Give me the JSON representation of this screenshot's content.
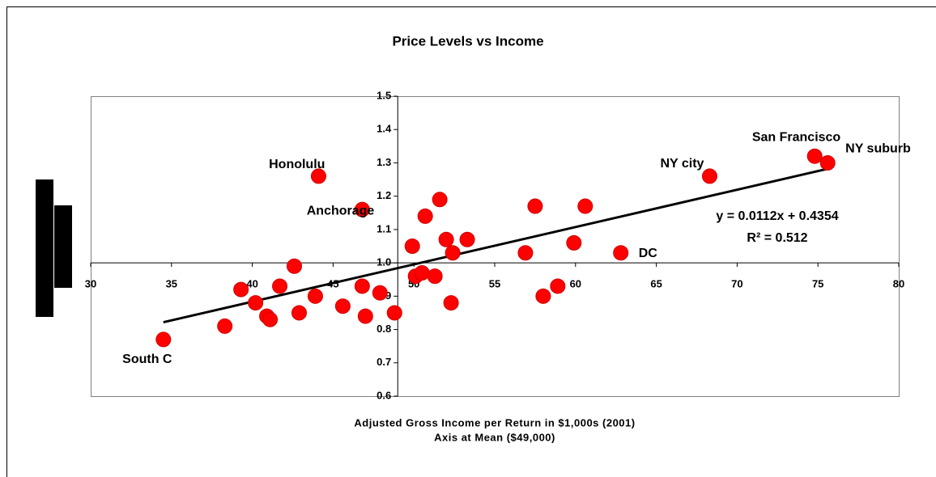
{
  "chart_data": {
    "type": "scatter",
    "title": "Price Levels vs Income",
    "x_label": "Adjusted Gross Income per Return in $1,000s (2001)",
    "x_label_2": "Axis at Mean ($49,000)",
    "x": [
      34.5,
      38.3,
      39.3,
      40.2,
      40.9,
      41.1,
      41.7,
      42.6,
      42.9,
      43.9,
      44.1,
      45.6,
      46.8,
      46.8,
      47.0,
      47.9,
      48.8,
      49.9,
      50.1,
      50.5,
      50.7,
      51.3,
      51.6,
      52.0,
      52.3,
      52.4,
      53.3,
      56.9,
      57.5,
      58.0,
      58.9,
      59.9,
      60.6,
      62.8,
      68.3,
      74.8,
      75.6
    ],
    "values": [
      0.77,
      0.81,
      0.92,
      0.88,
      0.84,
      0.83,
      0.93,
      0.99,
      0.85,
      0.9,
      1.26,
      0.87,
      0.93,
      1.16,
      0.84,
      0.91,
      0.85,
      1.05,
      0.96,
      0.97,
      1.14,
      0.96,
      1.19,
      1.07,
      0.88,
      1.03,
      1.07,
      1.03,
      1.17,
      0.9,
      0.93,
      1.06,
      1.17,
      1.03,
      1.26,
      1.32,
      1.3
    ],
    "point_labels": [
      "South C",
      null,
      null,
      null,
      null,
      null,
      null,
      null,
      null,
      null,
      "Honolulu",
      null,
      null,
      "Anchorage",
      null,
      null,
      null,
      null,
      null,
      null,
      null,
      null,
      null,
      null,
      null,
      null,
      null,
      null,
      null,
      null,
      null,
      null,
      null,
      "DC",
      "NY city",
      "San Francisco",
      "NY suburb"
    ],
    "color": "#ff0000",
    "trendline": {
      "slope": 0.0112,
      "intercept": 0.4354,
      "equation": "y = 0.0112x + 0.4354",
      "r2_label": "R² = 0.512"
    },
    "xlim": [
      30,
      80
    ],
    "xticks": [
      30,
      35,
      40,
      45,
      50,
      55,
      60,
      65,
      70,
      75,
      80
    ],
    "ylim": [
      0.6,
      1.5
    ],
    "yticks": [
      0.6,
      0.7,
      0.8,
      0.9,
      {
        "value": 1,
        "label": "1.0"
      },
      1.1,
      1.2,
      1.3,
      1.4,
      1.5
    ],
    "y_axis_at_x": 49,
    "x_axis_at_y": 1
  }
}
